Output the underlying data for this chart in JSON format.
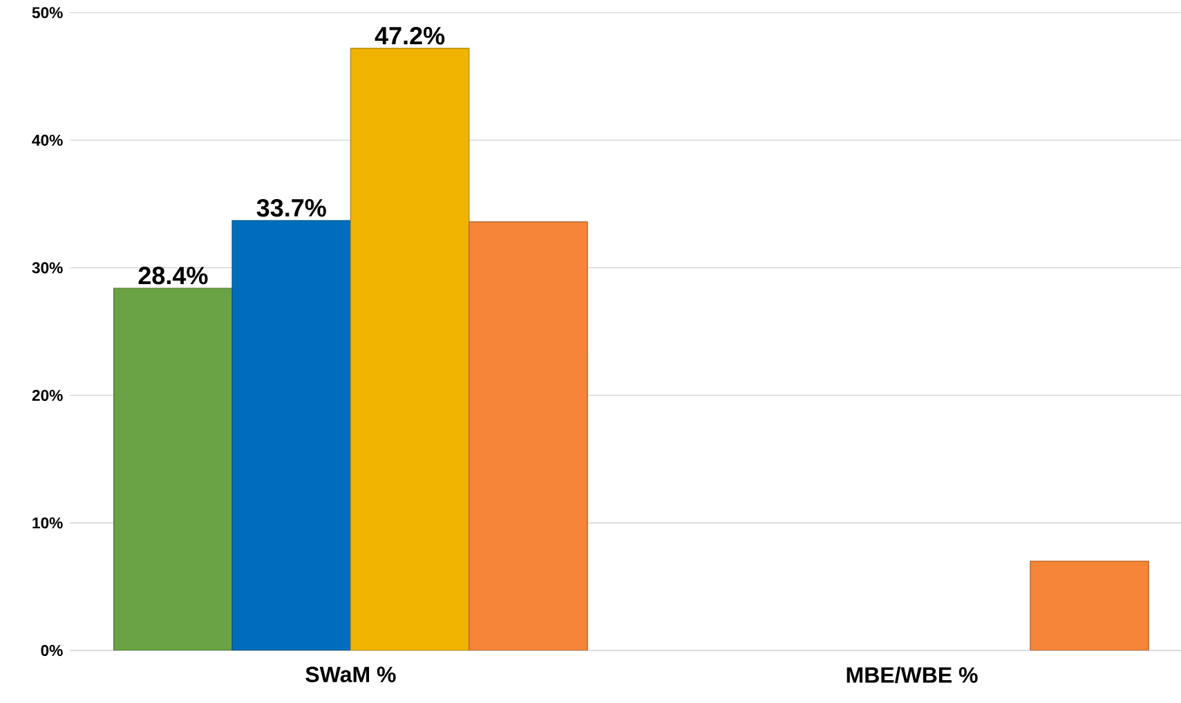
{
  "chart_data": {
    "type": "bar",
    "categories": [
      "SWaM  %",
      "MBE/WBE %"
    ],
    "series": [
      {
        "color": "#6aa344",
        "values": [
          28.4,
          null
        ],
        "value_labels": [
          "28.4%",
          null
        ]
      },
      {
        "color": "#006dbb",
        "values": [
          33.7,
          null
        ],
        "value_labels": [
          "33.7%",
          null
        ]
      },
      {
        "color": "#f0b400",
        "values": [
          47.2,
          null
        ],
        "value_labels": [
          "47.2%",
          null
        ]
      },
      {
        "color": "#f58538",
        "values": [
          33.6,
          7.0
        ]
      }
    ],
    "ylim": [
      0,
      50
    ],
    "yticks": [
      {
        "value": 0,
        "label": "0%"
      },
      {
        "value": 10,
        "label": "10%"
      },
      {
        "value": 20,
        "label": "20%"
      },
      {
        "value": 30,
        "label": "30%"
      },
      {
        "value": 40,
        "label": "40%"
      },
      {
        "value": 50,
        "label": "50%"
      }
    ],
    "grid": "y"
  }
}
